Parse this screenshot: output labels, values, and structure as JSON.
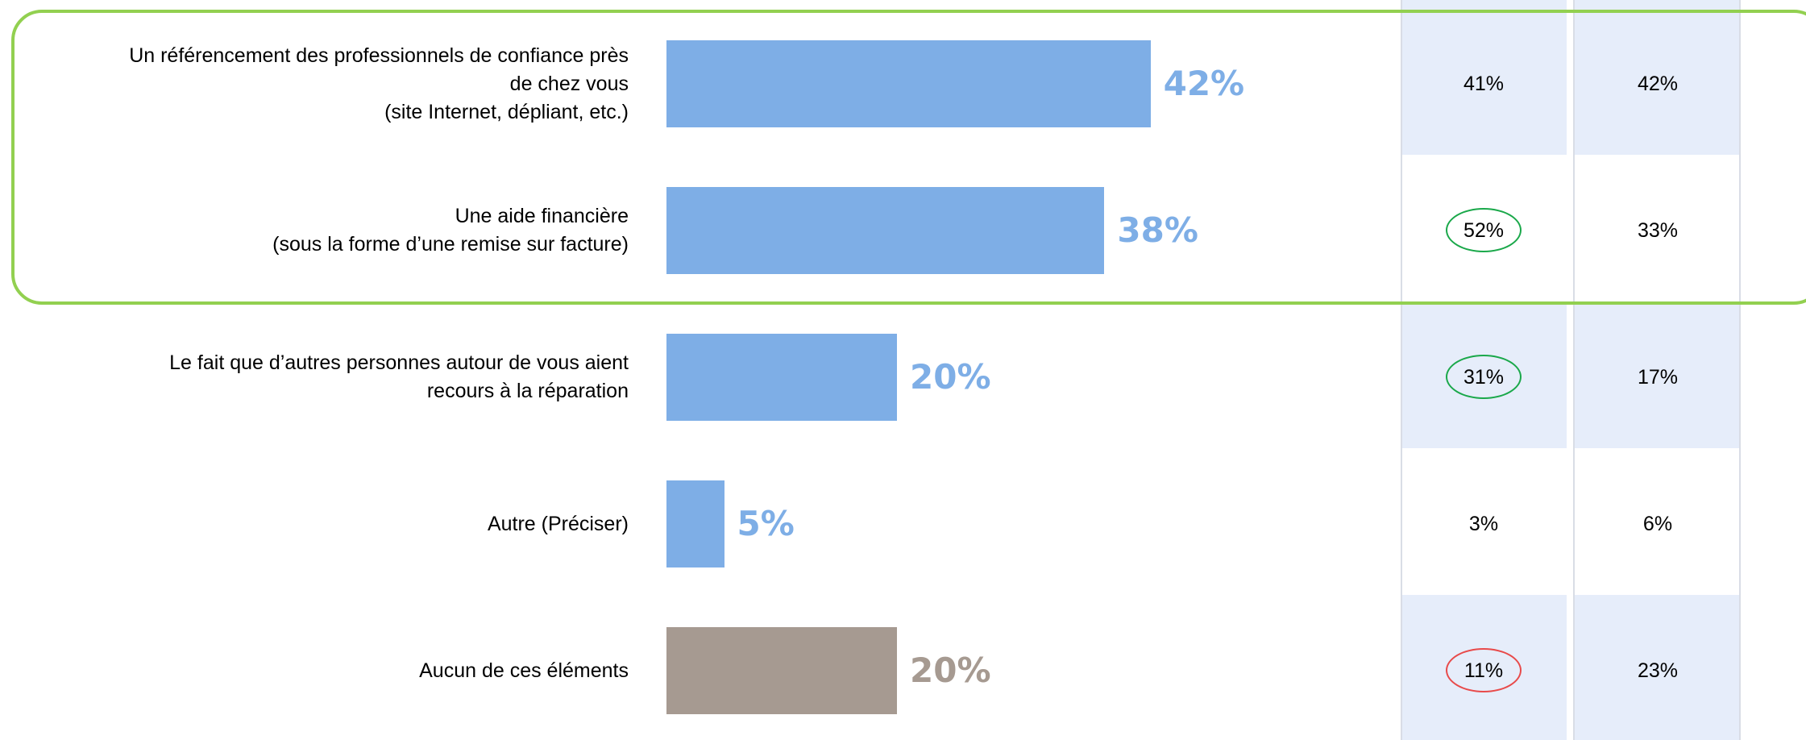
{
  "chart_data": {
    "type": "bar",
    "orientation": "horizontal",
    "categories": [
      [
        "Un référencement des professionnels de confiance près",
        "de chez vous",
        "(site Internet, dépliant, etc.)"
      ],
      [
        "Une aide financière",
        "(sous la forme d’une remise sur facture)"
      ],
      [
        "Le fait que d’autres personnes autour de vous aient",
        "recours à la réparation"
      ],
      [
        "Autre (Préciser)"
      ],
      [
        "Aucun de ces éléments"
      ]
    ],
    "values": [
      42,
      38,
      20,
      5,
      20
    ],
    "value_labels": [
      "42%",
      "38%",
      "20%",
      "5%",
      "20%"
    ],
    "bar_colors": [
      "#7eaee6",
      "#7eaee6",
      "#7eaee6",
      "#7eaee6",
      "#a69a91"
    ],
    "xlim": [
      0,
      100
    ],
    "table": {
      "columns": [
        [
          "41%",
          "52%",
          "31%",
          "3%",
          "11%"
        ],
        [
          "42%",
          "33%",
          "17%",
          "6%",
          "23%"
        ]
      ],
      "highlights": [
        {
          "column": 0,
          "row": 1,
          "color": "#1aa84a"
        },
        {
          "column": 0,
          "row": 2,
          "color": "#1aa84a"
        },
        {
          "column": 0,
          "row": 4,
          "color": "#e84a4a"
        }
      ]
    },
    "highlighted_rows": [
      0,
      1
    ],
    "highlight_frame_color": "#92d050",
    "table_shade_color": "#e6edfa"
  }
}
